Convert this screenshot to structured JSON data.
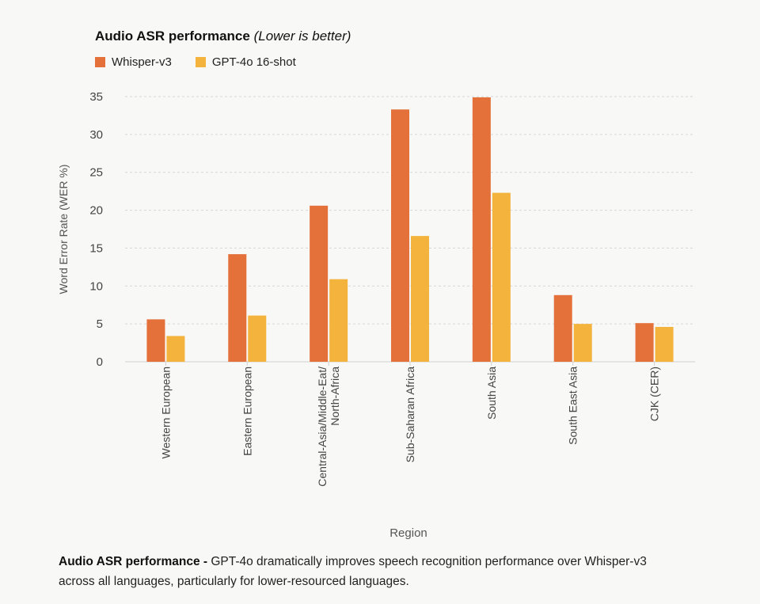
{
  "chart_data": {
    "type": "bar",
    "title": "Audio ASR performance",
    "subtitle": "(Lower is better)",
    "xlabel": "Region",
    "ylabel": "Word Error Rate (WER %)",
    "ylim": [
      0,
      35
    ],
    "yticks": [
      0,
      5,
      10,
      15,
      20,
      25,
      30,
      35
    ],
    "grid": true,
    "legend_position": "top-left",
    "categories": [
      [
        "Western European"
      ],
      [
        "Eastern European"
      ],
      [
        "Central-Asia/Middle-Eat/",
        "North-Africa"
      ],
      [
        "Sub-Saharan Africa"
      ],
      [
        "South Asia"
      ],
      [
        "South East Asia"
      ],
      [
        "CJK (CER)"
      ]
    ],
    "series": [
      {
        "name": "Whisper-v3",
        "color": "#e5713a",
        "values": [
          5.6,
          14.2,
          20.6,
          33.3,
          34.9,
          8.8,
          5.1
        ]
      },
      {
        "name": "GPT-4o 16-shot",
        "color": "#f3b33d",
        "values": [
          3.4,
          6.1,
          10.9,
          16.6,
          22.3,
          5.0,
          4.6
        ]
      }
    ]
  },
  "caption": {
    "bold": "Audio ASR performance -",
    "text": " GPT-4o dramatically improves speech recognition performance over Whisper-v3 across all languages, particularly for lower-resourced languages."
  }
}
